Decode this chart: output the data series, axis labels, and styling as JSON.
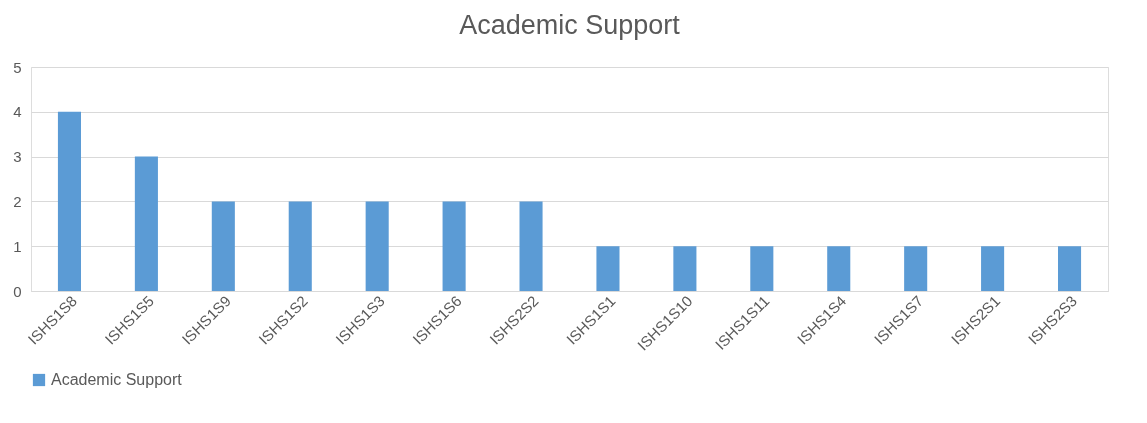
{
  "chart_data": {
    "type": "bar",
    "title": "Academic Support",
    "categories": [
      "ISHS1S8",
      "ISHS1S5",
      "ISHS1S9",
      "ISHS1S2",
      "ISHS1S3",
      "ISHS1S6",
      "ISHS2S2",
      "ISHS1S1",
      "ISHS1S10",
      "ISHS1S11",
      "ISHS1S4",
      "ISHS1S7",
      "ISHS2S1",
      "ISHS2S3"
    ],
    "series": [
      {
        "name": "Academic Support",
        "color": "#5b9bd5",
        "values": [
          4,
          3,
          2,
          2,
          2,
          2,
          2,
          1,
          1,
          1,
          1,
          1,
          1,
          1
        ]
      }
    ],
    "ylim": [
      0,
      5
    ],
    "yticks": [
      0,
      1,
      2,
      3,
      4,
      5
    ],
    "grid": "y",
    "legend": "bottom"
  }
}
